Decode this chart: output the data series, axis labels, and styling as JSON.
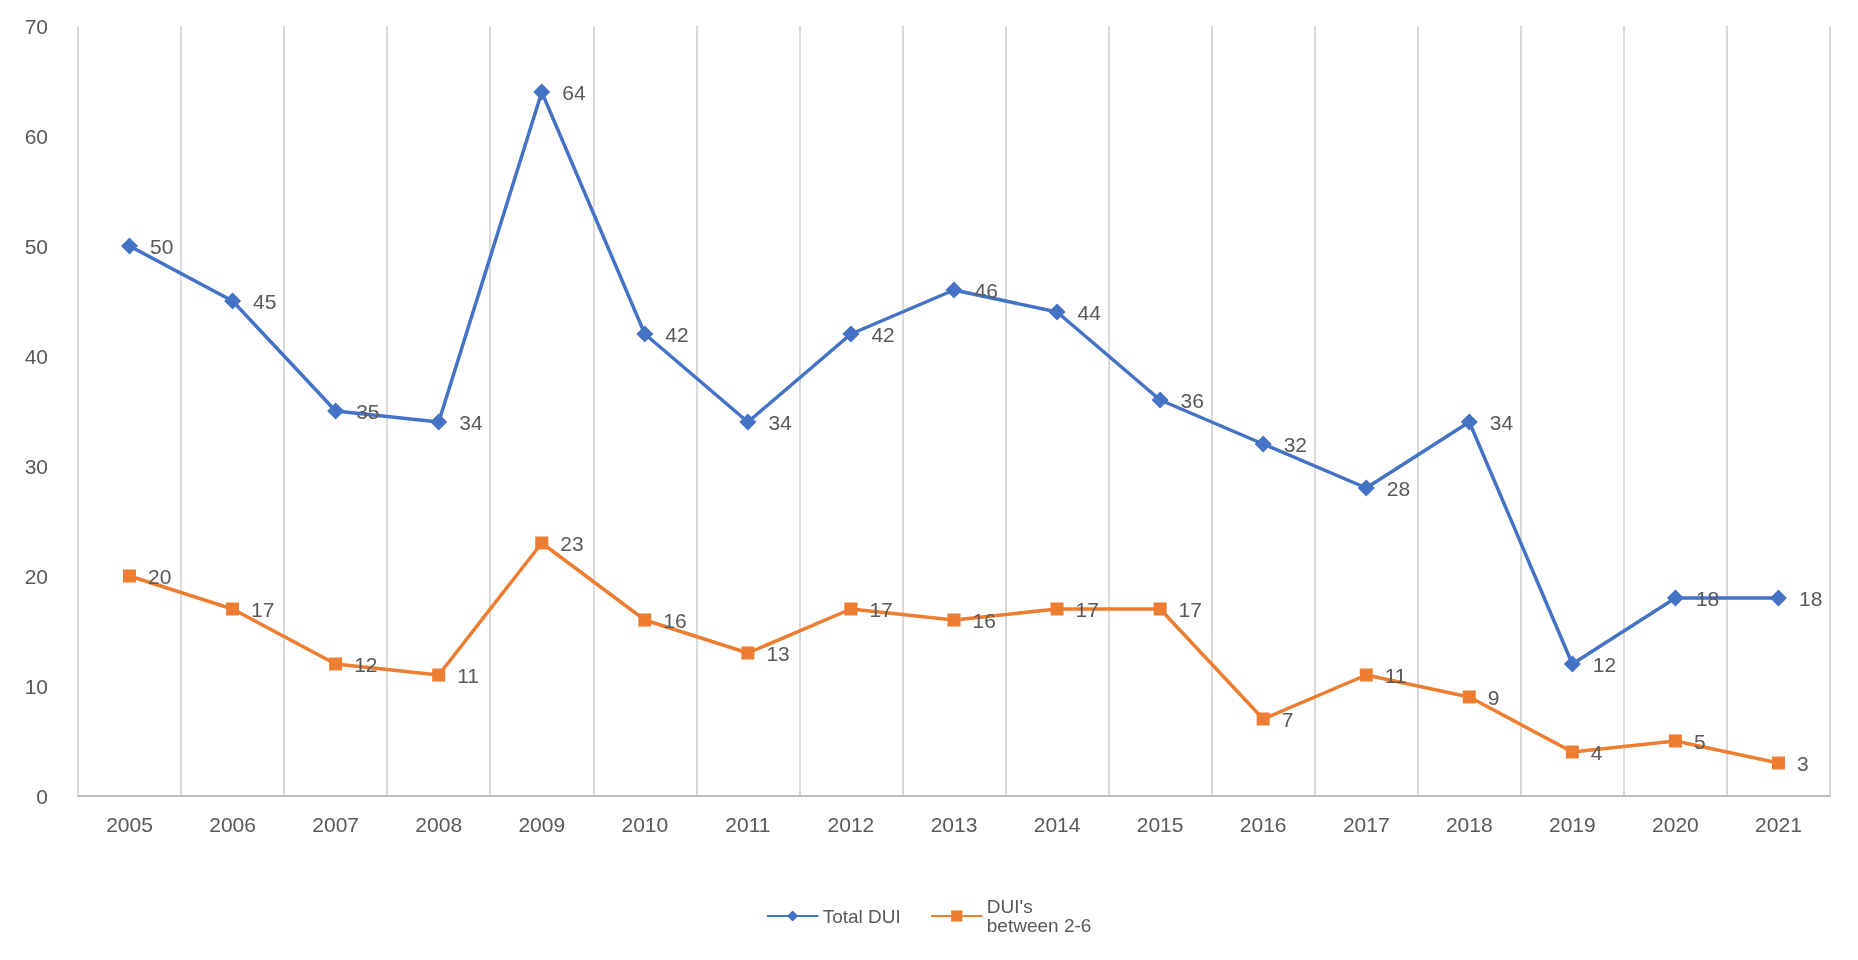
{
  "chart_data": {
    "type": "line",
    "categories": [
      "2005",
      "2006",
      "2007",
      "2008",
      "2009",
      "2010",
      "2011",
      "2012",
      "2013",
      "2014",
      "2015",
      "2016",
      "2017",
      "2018",
      "2019",
      "2020",
      "2021"
    ],
    "series": [
      {
        "name": "Total DUI",
        "color": "#4472c4",
        "marker": "diamond",
        "values": [
          50,
          45,
          35,
          34,
          64,
          42,
          34,
          42,
          46,
          44,
          36,
          32,
          28,
          34,
          12,
          18,
          18
        ]
      },
      {
        "name": "DUI's between 2-6",
        "color": "#ed7d31",
        "marker": "square",
        "values": [
          20,
          17,
          12,
          11,
          23,
          16,
          13,
          17,
          16,
          17,
          17,
          7,
          11,
          9,
          4,
          5,
          3
        ]
      }
    ],
    "ylim": [
      0,
      70
    ],
    "yticks": [
      0,
      10,
      20,
      30,
      40,
      50,
      60,
      70
    ],
    "grid": "x",
    "legend": "bottom",
    "data_labels": true,
    "line_style": "solid"
  }
}
